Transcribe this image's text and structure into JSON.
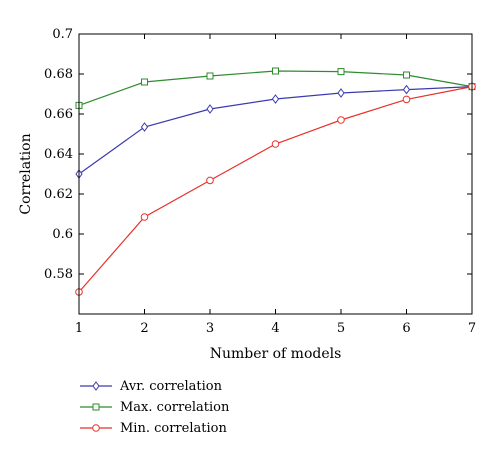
{
  "chart_data": {
    "type": "line",
    "x": [
      1,
      2,
      3,
      4,
      5,
      6,
      7
    ],
    "xlabel": "Number of models",
    "ylabel": "Correlation",
    "xlim": [
      1,
      7
    ],
    "ylim": [
      0.56,
      0.7
    ],
    "xticks": [
      "1",
      "2",
      "3",
      "4",
      "5",
      "6",
      "7"
    ],
    "yticks": [
      "0.58",
      "0.6",
      "0.62",
      "0.64",
      "0.66",
      "0.68",
      "0.7"
    ],
    "grid": false,
    "legend_position": "bottom-left, below plot",
    "series": [
      {
        "name": "Avr. correlation",
        "color": "#3b3bb0",
        "marker": "diamond",
        "values": [
          0.63,
          0.6535,
          0.6625,
          0.6675,
          0.6705,
          0.6722,
          0.6737
        ]
      },
      {
        "name": "Max. correlation",
        "color": "#2e8b2e",
        "marker": "square",
        "values": [
          0.6643,
          0.676,
          0.679,
          0.6815,
          0.6812,
          0.6795,
          0.6737
        ]
      },
      {
        "name": "Min. correlation",
        "color": "#e8312a",
        "marker": "circle",
        "values": [
          0.571,
          0.6085,
          0.6268,
          0.645,
          0.657,
          0.6673,
          0.6737
        ]
      }
    ]
  }
}
